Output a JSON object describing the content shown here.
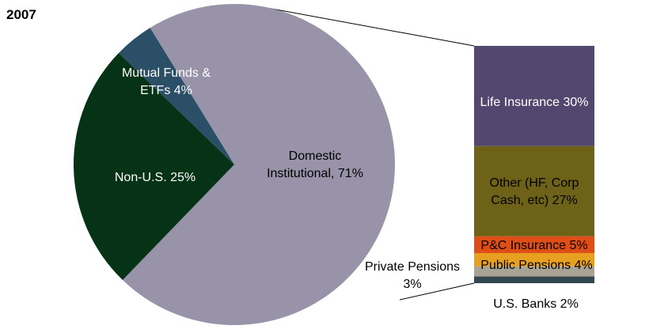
{
  "chart_data": {
    "type": "pie",
    "title": "2007",
    "pie": {
      "slices": [
        {
          "label_lines": [
            "Domestic",
            "Institutional, 71%"
          ],
          "value": 71,
          "color": "#9893a9",
          "text_color": "#000000"
        },
        {
          "label_lines": [
            "Non-U.S. 25%"
          ],
          "value": 25,
          "color": "#063315",
          "text_color": "#ffffff"
        },
        {
          "label_lines": [
            "Mutual Funds &",
            "ETFs 4%"
          ],
          "value": 4,
          "color": "#2b4f67",
          "text_color": "#ffffff"
        }
      ]
    },
    "breakdown_bar": {
      "parent_slice": "Domestic Institutional, 71%",
      "segments": [
        {
          "label": "Life Insurance 30%",
          "value": 30,
          "color": "#54476f",
          "text_color": "#ffffff",
          "label_lines": [
            "Life Insurance 30%"
          ]
        },
        {
          "label": "Other (HF, Corp Cash, etc) 27%",
          "value": 27,
          "color": "#6e6118",
          "text_color": "#000000",
          "label_lines": [
            "Other (HF, Corp",
            "Cash, etc) 27%"
          ]
        },
        {
          "label": "P&C Insurance 5%",
          "value": 5,
          "color": "#e04e18",
          "text_color": "#000000",
          "label_lines": [
            "P&C Insurance 5%"
          ]
        },
        {
          "label": "Public Pensions 4%",
          "value": 4,
          "color": "#e8a020",
          "text_color": "#000000",
          "label_lines": [
            "Public Pensions 4%"
          ]
        },
        {
          "label": "Private Pensions 3%",
          "value": 3,
          "color": "#a9a395",
          "text_color": "#000000",
          "label_lines": [
            "Private Pensions",
            "3%"
          ]
        },
        {
          "label": "U.S. Banks 2%",
          "value": 2,
          "color": "#34474f",
          "text_color": "#000000",
          "label_lines": [
            "U.S. Banks 2%"
          ]
        }
      ]
    }
  }
}
